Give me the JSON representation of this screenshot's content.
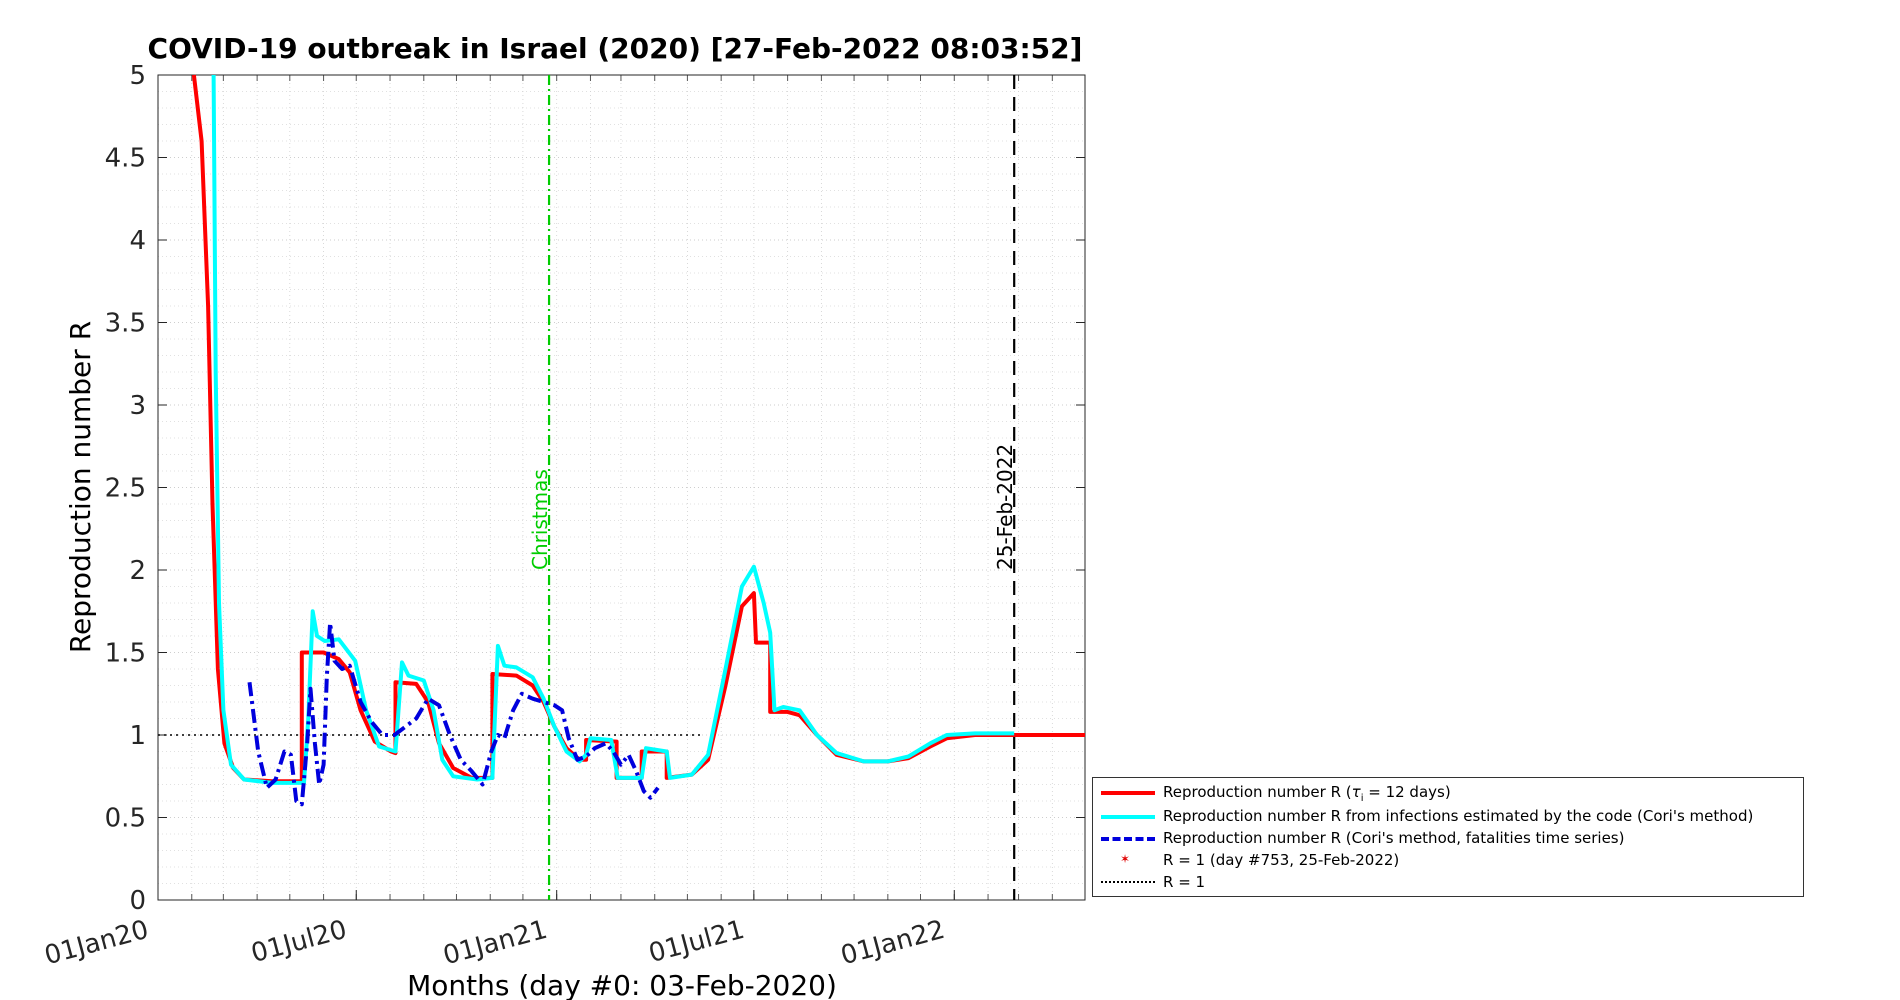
{
  "chart_data": {
    "type": "line",
    "title": "COVID-19 outbreak in Israel (2020) [27-Feb-2022 08:03:52]",
    "xlabel": "Months (day #0: 03-Feb-2020)",
    "ylabel": "Reproduction number R",
    "xlim": [
      "2020-01-01",
      "2022-05-01"
    ],
    "ylim": [
      0,
      5
    ],
    "yticks": [
      0,
      0.5,
      1,
      1.5,
      2,
      2.5,
      3,
      3.5,
      4,
      4.5,
      5
    ],
    "ytick_labels": [
      "0",
      "0.5",
      "1",
      "1.5",
      "2",
      "2.5",
      "3",
      "3.5",
      "4",
      "4.5",
      "5"
    ],
    "xticks": [
      {
        "date": "2020-01-01",
        "label": "01Jan20"
      },
      {
        "date": "2020-07-01",
        "label": "01Jul20"
      },
      {
        "date": "2021-01-01",
        "label": "01Jan21"
      },
      {
        "date": "2021-07-01",
        "label": "01Jul21"
      },
      {
        "date": "2022-01-01",
        "label": "01Jan22"
      }
    ],
    "grid": true,
    "annotations": [
      {
        "date": "2020-12-25",
        "label": "Christmas",
        "color": "#00cc00",
        "style": "dashdot"
      },
      {
        "date": "2022-02-25",
        "label": "25-Feb-2022",
        "color": "#000000",
        "style": "dashed"
      }
    ],
    "reference_line": {
      "y": 1,
      "from": "2020-01-01",
      "to": "2021-05-15"
    },
    "series": [
      {
        "name": "Reproduction number R (τi = 12 days)",
        "color": "#ff0000",
        "style": "solid",
        "points": [
          [
            "2020-02-03",
            5.0
          ],
          [
            "2020-02-10",
            4.6
          ],
          [
            "2020-02-16",
            3.6
          ],
          [
            "2020-02-20",
            2.4
          ],
          [
            "2020-02-25",
            1.4
          ],
          [
            "2020-03-02",
            0.95
          ],
          [
            "2020-03-10",
            0.8
          ],
          [
            "2020-03-20",
            0.73
          ],
          [
            "2020-04-15",
            0.72
          ],
          [
            "2020-05-12",
            0.72
          ],
          [
            "2020-05-12",
            1.5
          ],
          [
            "2020-06-01",
            1.5
          ],
          [
            "2020-06-15",
            1.46
          ],
          [
            "2020-06-25",
            1.38
          ],
          [
            "2020-07-05",
            1.15
          ],
          [
            "2020-07-18",
            0.96
          ],
          [
            "2020-08-02",
            0.9
          ],
          [
            "2020-08-06",
            0.89
          ],
          [
            "2020-08-06",
            1.32
          ],
          [
            "2020-08-25",
            1.31
          ],
          [
            "2020-09-05",
            1.2
          ],
          [
            "2020-09-15",
            0.95
          ],
          [
            "2020-09-28",
            0.8
          ],
          [
            "2020-10-15",
            0.74
          ],
          [
            "2020-11-01",
            0.74
          ],
          [
            "2020-11-03",
            0.74
          ],
          [
            "2020-11-03",
            1.37
          ],
          [
            "2020-11-25",
            1.36
          ],
          [
            "2020-12-10",
            1.3
          ],
          [
            "2020-12-20",
            1.2
          ],
          [
            "2020-12-30",
            1.05
          ],
          [
            "2021-01-10",
            0.92
          ],
          [
            "2021-01-22",
            0.85
          ],
          [
            "2021-01-28",
            0.85
          ],
          [
            "2021-01-28",
            0.97
          ],
          [
            "2021-02-25",
            0.96
          ],
          [
            "2021-02-25",
            0.74
          ],
          [
            "2021-03-20",
            0.74
          ],
          [
            "2021-03-20",
            0.9
          ],
          [
            "2021-04-12",
            0.9
          ],
          [
            "2021-04-12",
            0.74
          ],
          [
            "2021-05-05",
            0.76
          ],
          [
            "2021-05-20",
            0.85
          ],
          [
            "2021-06-05",
            1.3
          ],
          [
            "2021-06-20",
            1.78
          ],
          [
            "2021-07-01",
            1.86
          ],
          [
            "2021-07-03",
            1.56
          ],
          [
            "2021-07-16",
            1.56
          ],
          [
            "2021-07-16",
            1.14
          ],
          [
            "2021-08-01",
            1.14
          ],
          [
            "2021-08-12",
            1.12
          ],
          [
            "2021-08-28",
            1.0
          ],
          [
            "2021-09-15",
            0.88
          ],
          [
            "2021-10-10",
            0.84
          ],
          [
            "2021-11-01",
            0.84
          ],
          [
            "2021-11-20",
            0.86
          ],
          [
            "2021-12-10",
            0.93
          ],
          [
            "2021-12-25",
            0.98
          ],
          [
            "2022-01-20",
            1.0
          ],
          [
            "2022-02-25",
            1.0
          ],
          [
            "2022-05-01",
            1.0
          ]
        ]
      },
      {
        "name": "Reproduction number R from infections estimated by the code (Cori's method)",
        "color": "#00ffff",
        "style": "solid",
        "points": [
          [
            "2020-02-21",
            5.0
          ],
          [
            "2020-02-23",
            3.2
          ],
          [
            "2020-02-26",
            1.8
          ],
          [
            "2020-03-01",
            1.15
          ],
          [
            "2020-03-08",
            0.82
          ],
          [
            "2020-03-20",
            0.73
          ],
          [
            "2020-04-15",
            0.71
          ],
          [
            "2020-05-14",
            0.71
          ],
          [
            "2020-05-18",
            1.1
          ],
          [
            "2020-05-22",
            1.75
          ],
          [
            "2020-05-26",
            1.6
          ],
          [
            "2020-06-02",
            1.57
          ],
          [
            "2020-06-15",
            1.58
          ],
          [
            "2020-06-30",
            1.45
          ],
          [
            "2020-07-10",
            1.15
          ],
          [
            "2020-07-22",
            0.93
          ],
          [
            "2020-08-06",
            0.9
          ],
          [
            "2020-08-12",
            1.44
          ],
          [
            "2020-08-18",
            1.36
          ],
          [
            "2020-09-01",
            1.33
          ],
          [
            "2020-09-10",
            1.15
          ],
          [
            "2020-09-18",
            0.85
          ],
          [
            "2020-09-28",
            0.75
          ],
          [
            "2020-10-20",
            0.73
          ],
          [
            "2020-11-03",
            0.74
          ],
          [
            "2020-11-08",
            1.54
          ],
          [
            "2020-11-14",
            1.42
          ],
          [
            "2020-11-25",
            1.41
          ],
          [
            "2020-12-10",
            1.35
          ],
          [
            "2020-12-20",
            1.22
          ],
          [
            "2020-12-30",
            1.05
          ],
          [
            "2021-01-10",
            0.9
          ],
          [
            "2021-01-22",
            0.84
          ],
          [
            "2021-01-28",
            0.88
          ],
          [
            "2021-02-01",
            0.98
          ],
          [
            "2021-02-20",
            0.97
          ],
          [
            "2021-02-26",
            0.74
          ],
          [
            "2021-03-20",
            0.74
          ],
          [
            "2021-03-24",
            0.92
          ],
          [
            "2021-04-12",
            0.9
          ],
          [
            "2021-04-15",
            0.74
          ],
          [
            "2021-05-05",
            0.76
          ],
          [
            "2021-05-20",
            0.88
          ],
          [
            "2021-06-05",
            1.4
          ],
          [
            "2021-06-20",
            1.9
          ],
          [
            "2021-07-01",
            2.02
          ],
          [
            "2021-07-10",
            1.8
          ],
          [
            "2021-07-16",
            1.62
          ],
          [
            "2021-07-20",
            1.15
          ],
          [
            "2021-07-28",
            1.17
          ],
          [
            "2021-08-12",
            1.15
          ],
          [
            "2021-08-28",
            1.0
          ],
          [
            "2021-09-15",
            0.89
          ],
          [
            "2021-10-10",
            0.84
          ],
          [
            "2021-11-01",
            0.84
          ],
          [
            "2021-11-20",
            0.87
          ],
          [
            "2021-12-10",
            0.95
          ],
          [
            "2021-12-25",
            1.0
          ],
          [
            "2022-01-20",
            1.01
          ],
          [
            "2022-02-25",
            1.01
          ]
        ]
      },
      {
        "name": "Reproduction number R (Cori's method, fatalities time series)",
        "color": "#0000dd",
        "style": "dashdot",
        "points": [
          [
            "2020-03-25",
            1.32
          ],
          [
            "2020-04-02",
            0.9
          ],
          [
            "2020-04-10",
            0.68
          ],
          [
            "2020-04-18",
            0.73
          ],
          [
            "2020-04-26",
            0.9
          ],
          [
            "2020-05-02",
            0.88
          ],
          [
            "2020-05-07",
            0.6
          ],
          [
            "2020-05-12",
            0.58
          ],
          [
            "2020-05-17",
            0.95
          ],
          [
            "2020-05-20",
            1.28
          ],
          [
            "2020-05-24",
            0.95
          ],
          [
            "2020-05-28",
            0.7
          ],
          [
            "2020-06-01",
            0.82
          ],
          [
            "2020-06-04",
            1.35
          ],
          [
            "2020-06-07",
            1.68
          ],
          [
            "2020-06-11",
            1.45
          ],
          [
            "2020-06-18",
            1.4
          ],
          [
            "2020-06-25",
            1.42
          ],
          [
            "2020-07-05",
            1.2
          ],
          [
            "2020-07-15",
            1.08
          ],
          [
            "2020-07-25",
            1.0
          ],
          [
            "2020-08-05",
            1.0
          ],
          [
            "2020-08-15",
            1.05
          ],
          [
            "2020-08-25",
            1.1
          ],
          [
            "2020-09-05",
            1.22
          ],
          [
            "2020-09-15",
            1.18
          ],
          [
            "2020-09-25",
            1.0
          ],
          [
            "2020-10-05",
            0.85
          ],
          [
            "2020-10-15",
            0.78
          ],
          [
            "2020-10-25",
            0.7
          ],
          [
            "2020-11-02",
            0.9
          ],
          [
            "2020-11-08",
            1.0
          ],
          [
            "2020-11-14",
            0.98
          ],
          [
            "2020-11-22",
            1.15
          ],
          [
            "2020-11-30",
            1.25
          ],
          [
            "2020-12-10",
            1.22
          ],
          [
            "2020-12-20",
            1.2
          ],
          [
            "2020-12-30",
            1.18
          ],
          [
            "2021-01-06",
            1.15
          ],
          [
            "2021-01-12",
            0.98
          ],
          [
            "2021-01-20",
            0.85
          ],
          [
            "2021-01-28",
            0.87
          ],
          [
            "2021-02-05",
            0.92
          ],
          [
            "2021-02-15",
            0.95
          ],
          [
            "2021-02-22",
            0.9
          ],
          [
            "2021-03-01",
            0.82
          ],
          [
            "2021-03-08",
            0.88
          ],
          [
            "2021-03-15",
            0.78
          ],
          [
            "2021-03-22",
            0.66
          ],
          [
            "2021-03-28",
            0.62
          ],
          [
            "2021-04-04",
            0.68
          ]
        ]
      }
    ],
    "legend": {
      "position": "outside-right-bottom",
      "entries": [
        {
          "label_pre": "Reproduction number R (",
          "label_tau": "τ",
          "label_sub": "i",
          "label_post": " = 12 days)",
          "color": "#ff0000",
          "style": "solid"
        },
        {
          "label": "Reproduction number R from infections estimated by the code (Cori's method)",
          "color": "#00ffff",
          "style": "solid"
        },
        {
          "label": "Reproduction number R (Cori's method, fatalities time series)",
          "color": "#0000dd",
          "style": "dashdot"
        },
        {
          "label": "R = 1 (day #753, 25-Feb-2022)",
          "color": "#ff0000",
          "style": "marker"
        },
        {
          "label": "R = 1",
          "color": "#000000",
          "style": "dotted"
        }
      ]
    }
  }
}
